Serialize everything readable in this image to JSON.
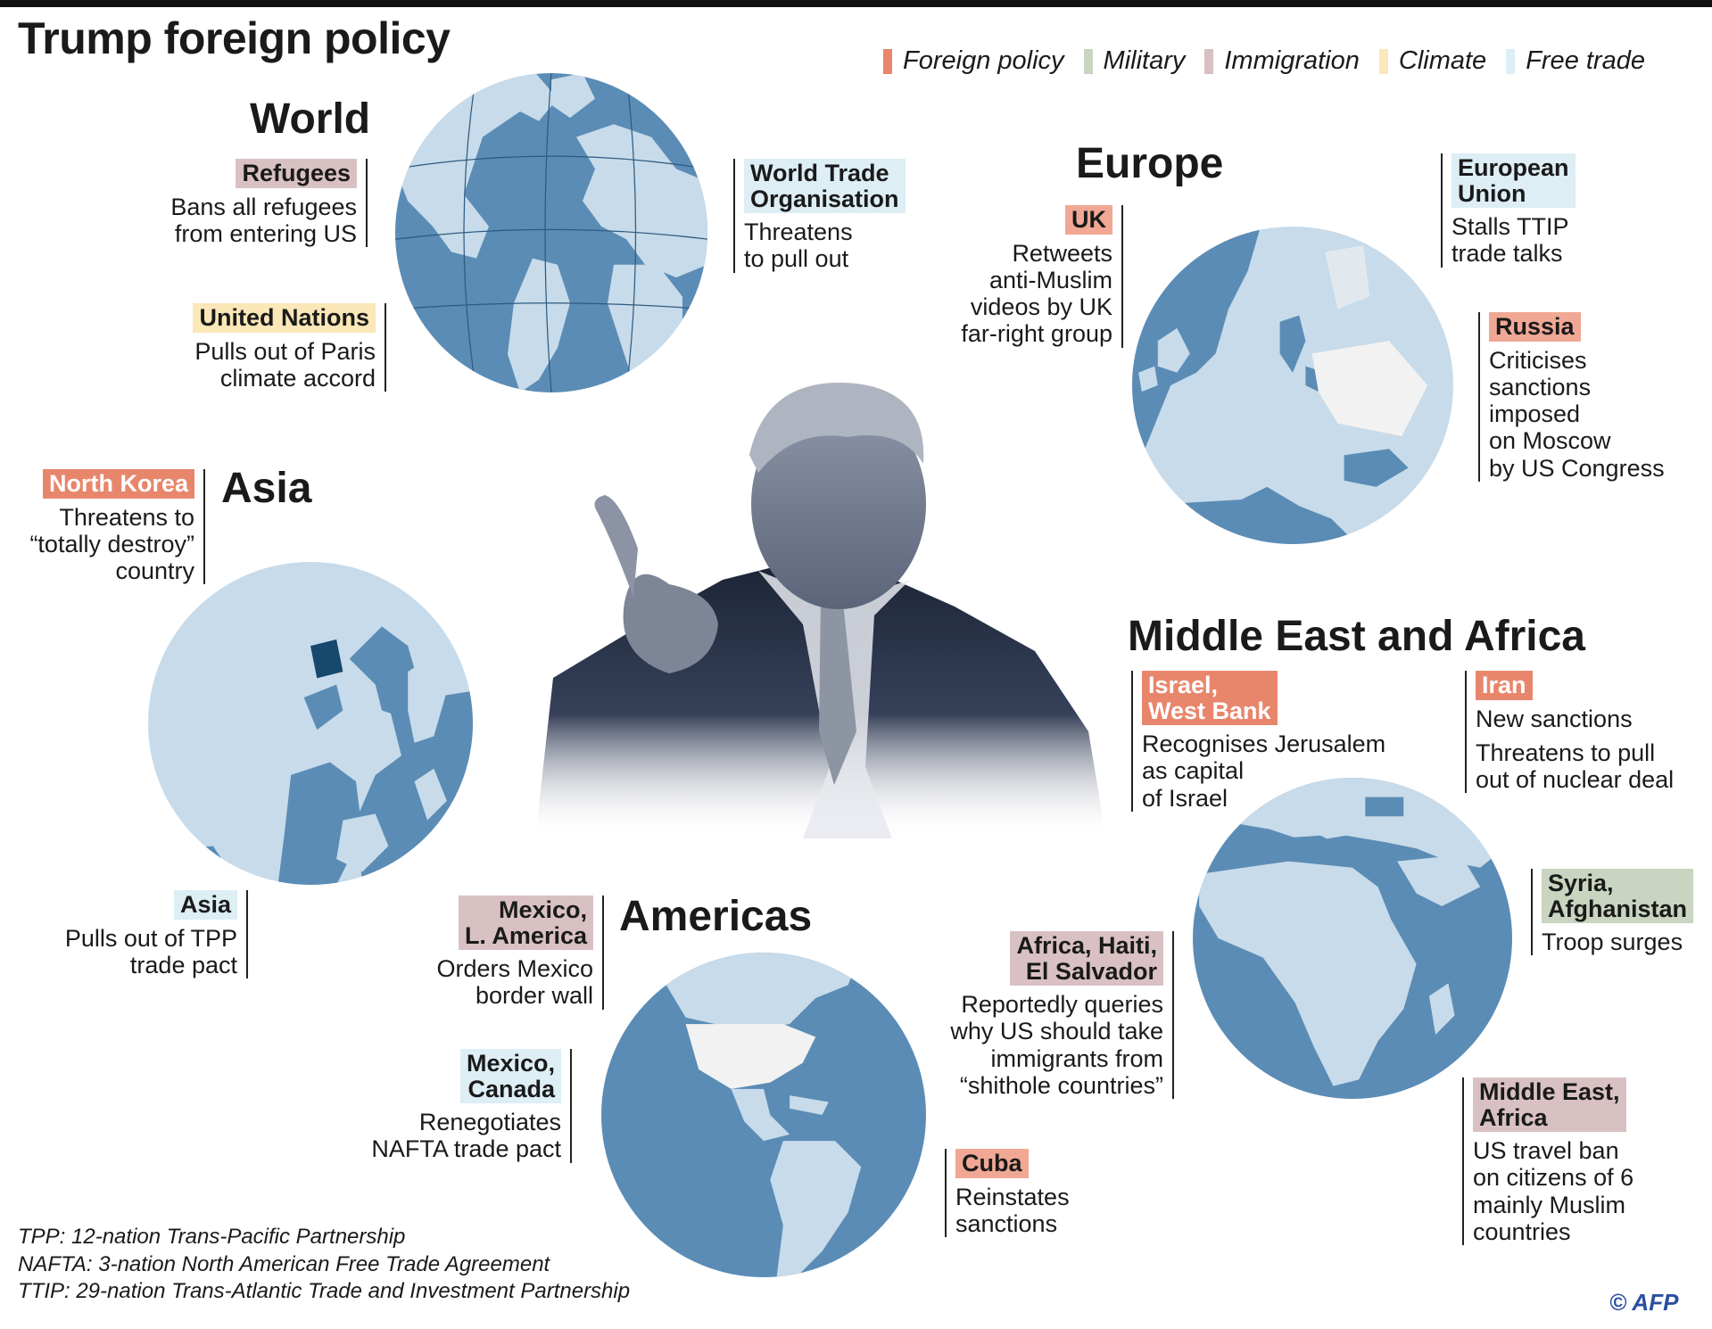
{
  "title": "Trump foreign policy",
  "legend": [
    {
      "label": "Foreign policy",
      "color": "#e8866c"
    },
    {
      "label": "Military",
      "color": "#c9d5c0"
    },
    {
      "label": "Immigration",
      "color": "#d9c1c3"
    },
    {
      "label": "Climate",
      "color": "#fbe7b7"
    },
    {
      "label": "Free trade",
      "color": "#ddeef5"
    }
  ],
  "colors": {
    "ocean": "#5b8cb5",
    "land": "#c7dbea",
    "highlight_land": "#f2f2f2",
    "north_korea": "#17486e"
  },
  "regions": {
    "world": "World",
    "europe": "Europe",
    "asia": "Asia",
    "middle_east_africa": "Middle East and Africa",
    "americas": "Americas"
  },
  "notes": {
    "refugees": {
      "tag": "Refugees",
      "text": [
        "Bans all refugees",
        "from entering US"
      ]
    },
    "un": {
      "tag": "United Nations",
      "text": [
        "Pulls out of Paris",
        "climate accord"
      ]
    },
    "wto": {
      "tag": [
        "World Trade",
        "Organisation"
      ],
      "text": [
        "Threatens",
        "to pull out"
      ]
    },
    "uk": {
      "tag": "UK",
      "text": [
        "Retweets",
        "anti-Muslim",
        "videos by UK",
        "far-right group"
      ]
    },
    "eu": {
      "tag": [
        "European",
        "Union"
      ],
      "text": [
        "Stalls TTIP",
        "trade talks"
      ]
    },
    "russia": {
      "tag": "Russia",
      "text": [
        "Criticises",
        "sanctions",
        "imposed",
        "on Moscow",
        "by US Congress"
      ]
    },
    "north_korea": {
      "tag": "North Korea",
      "text": [
        "Threatens to",
        "“totally destroy”",
        "country"
      ]
    },
    "asia_tpp": {
      "tag": "Asia",
      "text": [
        "Pulls out of TPP",
        "trade pact"
      ]
    },
    "israel": {
      "tag": [
        "Israel,",
        "West Bank"
      ],
      "text": [
        "Recognises Jerusalem",
        "as capital",
        "of Israel"
      ]
    },
    "iran": {
      "tag": "Iran",
      "text": [
        "New sanctions",
        "Threatens to pull",
        "out of nuclear deal"
      ]
    },
    "syria": {
      "tag": [
        "Syria,",
        "Afghanistan"
      ],
      "text": [
        "Troop surges"
      ]
    },
    "africa_haiti": {
      "tag": [
        "Africa, Haiti,",
        "El Salvador"
      ],
      "text": [
        "Reportedly queries",
        "why US should take",
        "immigrants from",
        "“shithole countries”"
      ]
    },
    "me_africa": {
      "tag": [
        "Middle East,",
        "Africa"
      ],
      "text": [
        "US travel ban",
        "on citizens of 6",
        "mainly Muslim",
        "countries"
      ]
    },
    "mexico_la": {
      "tag": [
        "Mexico,",
        "L. America"
      ],
      "text": [
        "Orders Mexico",
        "border wall"
      ]
    },
    "mexico_canada": {
      "tag": [
        "Mexico,",
        "Canada"
      ],
      "text": [
        "Renegotiates",
        "NAFTA  trade pact"
      ]
    },
    "cuba": {
      "tag": "Cuba",
      "text": [
        "Reinstates",
        "sanctions"
      ]
    }
  },
  "footnotes": [
    "TPP: 12-nation Trans-Pacific Partnership",
    "NAFTA: 3-nation North American Free Trade Agreement",
    "TTIP: 29-nation Trans-Atlantic Trade and Investment Partnership"
  ],
  "credit": "© AFP"
}
